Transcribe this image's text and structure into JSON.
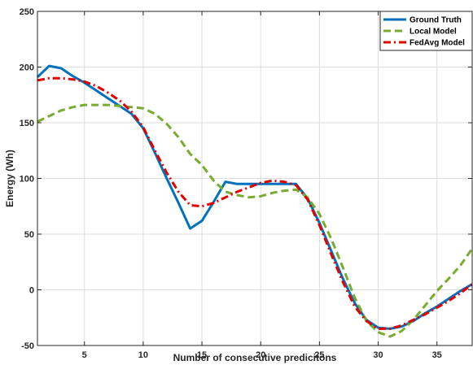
{
  "chart_data": {
    "type": "line",
    "title": "",
    "xlabel": "Number of consecutive predicitons",
    "ylabel": "Energy (Wh)",
    "xlim": [
      1,
      38
    ],
    "ylim": [
      -50,
      250
    ],
    "xticks": [
      5,
      10,
      15,
      20,
      25,
      30,
      35
    ],
    "yticks": [
      -50,
      0,
      50,
      100,
      150,
      200,
      250
    ],
    "grid": true,
    "legend_position": "top-right",
    "series": [
      {
        "name": "Ground Truth",
        "color": "#0072BD",
        "style": "solid",
        "x": [
          1,
          2,
          3,
          4,
          5,
          6,
          7,
          8,
          9,
          10,
          11,
          12,
          13,
          14,
          15,
          16,
          17,
          18,
          19,
          20,
          21,
          22,
          23,
          24,
          25,
          26,
          27,
          28,
          29,
          30,
          31,
          32,
          33,
          34,
          35,
          36,
          37,
          38
        ],
        "y": [
          191,
          201,
          199,
          192,
          186,
          179,
          172,
          165,
          158,
          145,
          123,
          100,
          78,
          55,
          62,
          79,
          97,
          95,
          95,
          95,
          95,
          95,
          95,
          82,
          60,
          35,
          10,
          -12,
          -27,
          -34,
          -35,
          -33,
          -28,
          -21,
          -15,
          -8,
          -1,
          5
        ]
      },
      {
        "name": "Local Model",
        "color": "#77AC30",
        "style": "dashed",
        "x": [
          1,
          2,
          3,
          4,
          5,
          6,
          7,
          8,
          9,
          10,
          11,
          12,
          13,
          14,
          15,
          16,
          17,
          18,
          19,
          20,
          21,
          22,
          23,
          24,
          25,
          26,
          27,
          28,
          29,
          30,
          31,
          32,
          33,
          34,
          35,
          36,
          37,
          38
        ],
        "y": [
          151,
          156,
          161,
          164,
          166,
          166,
          166,
          165,
          164,
          163,
          158,
          149,
          137,
          122,
          112,
          98,
          88,
          85,
          83,
          84,
          87,
          89,
          90,
          83,
          68,
          46,
          20,
          -7,
          -28,
          -38,
          -42,
          -37,
          -27,
          -14,
          -1,
          10,
          22,
          37
        ]
      },
      {
        "name": "FedAvg Model",
        "color": "#E50000",
        "style": "dashdot",
        "x": [
          1,
          2,
          3,
          4,
          5,
          6,
          7,
          8,
          9,
          10,
          11,
          12,
          13,
          14,
          15,
          16,
          17,
          18,
          19,
          20,
          21,
          22,
          23,
          24,
          25,
          26,
          27,
          28,
          29,
          30,
          31,
          32,
          33,
          34,
          35,
          36,
          37,
          38
        ],
        "y": [
          188,
          190,
          190,
          189,
          187,
          183,
          177,
          170,
          160,
          146,
          125,
          105,
          88,
          76,
          75,
          78,
          83,
          88,
          92,
          96,
          98,
          97,
          94,
          81,
          58,
          32,
          7,
          -15,
          -28,
          -35,
          -35,
          -32,
          -27,
          -22,
          -16,
          -10,
          -3,
          5
        ]
      }
    ]
  }
}
